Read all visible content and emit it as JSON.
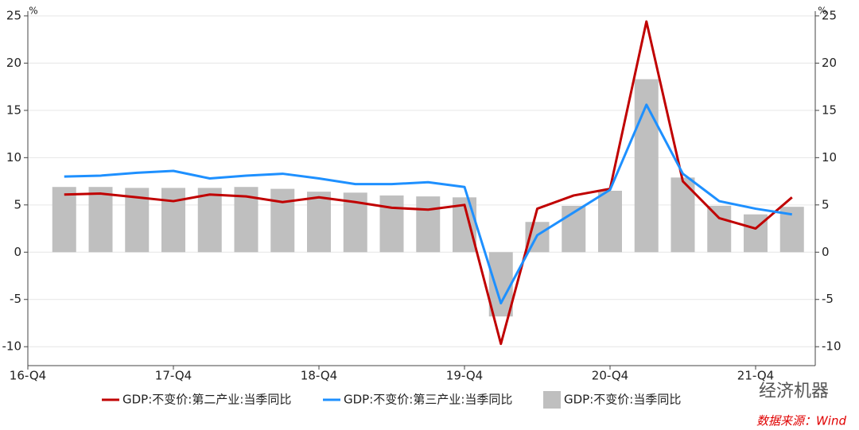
{
  "chart_data": {
    "type": "bar_line",
    "categories": [
      "16-Q4",
      null,
      null,
      null,
      "17-Q4",
      null,
      null,
      null,
      "18-Q4",
      null,
      null,
      null,
      "19-Q4",
      null,
      null,
      null,
      "20-Q4",
      null,
      null,
      null,
      "21-Q4",
      null
    ],
    "series": [
      {
        "name": "GDP:不变价:第二产业:当季同比",
        "type": "line",
        "color": "#c00000",
        "values": [
          null,
          6.1,
          6.2,
          5.8,
          5.4,
          6.1,
          5.9,
          5.3,
          5.8,
          5.3,
          4.7,
          4.5,
          5.0,
          -9.7,
          4.6,
          6.0,
          6.7,
          24.4,
          7.5,
          3.6,
          2.5,
          5.8
        ]
      },
      {
        "name": "GDP:不变价:第三产业:当季同比",
        "type": "line",
        "color": "#1e90ff",
        "values": [
          null,
          8.0,
          8.1,
          8.4,
          8.6,
          7.8,
          8.1,
          8.3,
          7.8,
          7.2,
          7.2,
          7.4,
          6.9,
          -5.4,
          1.8,
          4.2,
          6.6,
          15.6,
          8.3,
          5.4,
          4.6,
          4.0
        ]
      },
      {
        "name": "GDP:不变价:当季同比",
        "type": "bar",
        "color": "#bfbfbf",
        "values": [
          null,
          6.9,
          6.9,
          6.8,
          6.8,
          6.8,
          6.9,
          6.7,
          6.4,
          6.3,
          6.0,
          5.9,
          5.8,
          -6.8,
          3.2,
          4.9,
          6.5,
          18.3,
          7.9,
          4.9,
          4.0,
          4.8
        ]
      }
    ],
    "ylim": [
      -12,
      25.5
    ],
    "yticks": [
      -10,
      -5,
      0,
      5,
      10,
      15,
      20,
      25
    ],
    "y2lim": [
      -12,
      25.5
    ],
    "y2ticks": [
      -10,
      -5,
      0,
      5,
      10,
      15,
      20,
      25
    ],
    "y_unit": "%",
    "y2_unit": "%",
    "grid": true,
    "watermark": "经济机器",
    "source": "数据来源：Wind"
  }
}
